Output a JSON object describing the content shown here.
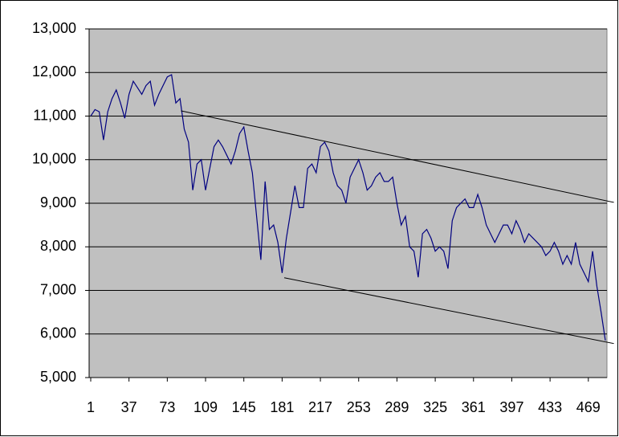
{
  "chart_data": {
    "type": "line",
    "x": [
      1,
      5,
      9,
      13,
      17,
      21,
      25,
      29,
      33,
      37,
      41,
      45,
      49,
      53,
      57,
      61,
      65,
      69,
      73,
      77,
      81,
      85,
      89,
      93,
      97,
      101,
      105,
      109,
      113,
      117,
      121,
      125,
      129,
      133,
      137,
      141,
      145,
      149,
      153,
      157,
      161,
      165,
      169,
      173,
      177,
      181,
      185,
      189,
      193,
      197,
      201,
      205,
      209,
      213,
      217,
      221,
      225,
      229,
      233,
      237,
      241,
      245,
      249,
      253,
      257,
      261,
      265,
      269,
      273,
      277,
      281,
      285,
      289,
      293,
      297,
      301,
      305,
      309,
      313,
      317,
      321,
      325,
      329,
      333,
      337,
      341,
      345,
      349,
      353,
      357,
      361,
      365,
      369,
      373,
      377,
      381,
      385,
      389,
      393,
      397,
      401,
      405,
      409,
      413,
      417,
      421,
      425,
      429,
      433,
      437,
      441,
      445,
      449,
      453,
      457,
      461,
      465,
      469,
      473,
      477,
      481,
      485
    ],
    "series": [
      {
        "color": "#000080",
        "values": [
          11000,
          11150,
          11100,
          10450,
          11100,
          11400,
          11600,
          11300,
          10950,
          11500,
          11800,
          11650,
          11500,
          11700,
          11800,
          11250,
          11500,
          11700,
          11900,
          11950,
          11300,
          11400,
          10700,
          10400,
          9300,
          9900,
          10000,
          9300,
          9800,
          10300,
          10450,
          10300,
          10100,
          9900,
          10200,
          10600,
          10750,
          10200,
          9700,
          8700,
          7700,
          9500,
          8400,
          8500,
          8100,
          7400,
          8200,
          8800,
          9400,
          8900,
          8900,
          9800,
          9900,
          9700,
          10300,
          10400,
          10200,
          9700,
          9400,
          9300,
          9000,
          9600,
          9800,
          10000,
          9700,
          9300,
          9400,
          9600,
          9700,
          9500,
          9500,
          9600,
          9000,
          8500,
          8700,
          8000,
          7900,
          7300,
          8300,
          8400,
          8200,
          7900,
          8000,
          7900,
          7500,
          8600,
          8900,
          9000,
          9100,
          8900,
          8900,
          9200,
          8900,
          8500,
          8300,
          8100,
          8300,
          8500,
          8500,
          8300,
          8600,
          8400,
          8100,
          8300,
          8200,
          8100,
          8000,
          7800,
          7900,
          8100,
          7900,
          7600,
          7800,
          7600,
          8100,
          7600,
          7400,
          7200,
          7900,
          7100,
          6500,
          5850
        ]
      }
    ],
    "trendlines": [
      {
        "color": "#000000",
        "x": [
          86,
          493
        ],
        "values": [
          11120,
          9020
        ]
      },
      {
        "color": "#000000",
        "x": [
          183,
          493
        ],
        "values": [
          7290,
          5780
        ]
      }
    ],
    "xlim": [
      1,
      485
    ],
    "xticks": [
      1,
      37,
      73,
      109,
      145,
      181,
      217,
      253,
      289,
      325,
      361,
      397,
      433,
      469
    ],
    "ylim": [
      5000,
      13000
    ],
    "yticks": [
      {
        "value": 5000,
        "label": "5,000"
      },
      {
        "value": 6000,
        "label": "6,000"
      },
      {
        "value": 7000,
        "label": "7,000"
      },
      {
        "value": 8000,
        "label": "8,000"
      },
      {
        "value": 9000,
        "label": "9,000"
      },
      {
        "value": 10000,
        "label": "10,000"
      },
      {
        "value": 11000,
        "label": "11,000"
      },
      {
        "value": 12000,
        "label": "12,000"
      },
      {
        "value": 13000,
        "label": "13,000"
      }
    ],
    "grid": true,
    "plot_background": "#c0c0c0"
  }
}
